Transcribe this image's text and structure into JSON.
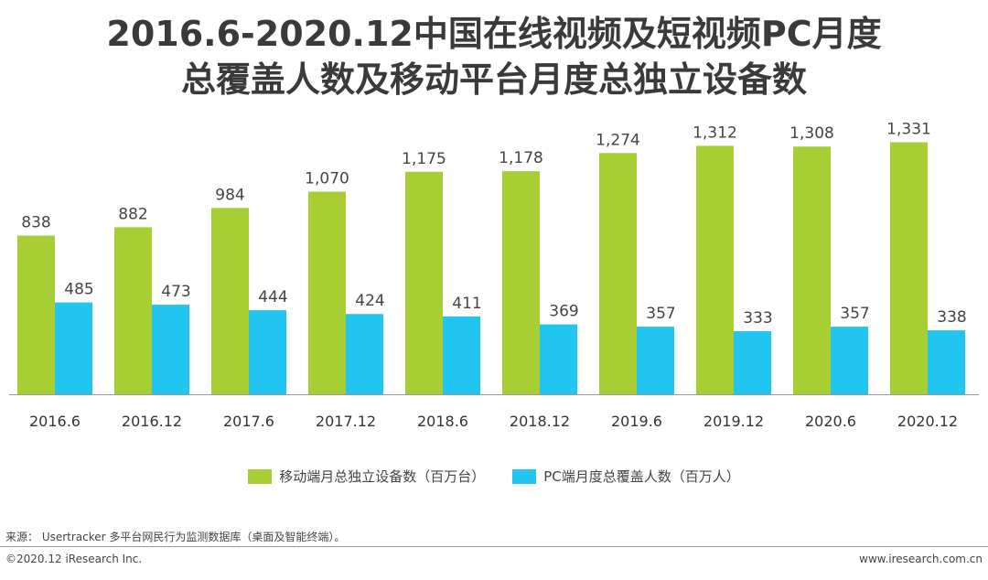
{
  "title_line1": "2016.6-2020.12中国在线视频及短视频PC月度",
  "title_line2": "总覆盖人数及移动平台月度总独立设备数",
  "colors": {
    "mobile": "#a7cf33",
    "pc": "#22c5ef",
    "axis": "#999999"
  },
  "chart_data": {
    "type": "bar",
    "title": "2016.6-2020.12中国在线视频及短视频PC月度总覆盖人数及移动平台月度总独立设备数",
    "categories": [
      "2016.6",
      "2016.12",
      "2017.6",
      "2017.12",
      "2018.6",
      "2018.12",
      "2019.6",
      "2019.12",
      "2020.6",
      "2020.12"
    ],
    "series": [
      {
        "name": "移动端月总独立设备数（百万台）",
        "values": [
          838,
          882,
          984,
          1070,
          1175,
          1178,
          1274,
          1312,
          1308,
          1331
        ],
        "labels": [
          "838",
          "882",
          "984",
          "1,070",
          "1,175",
          "1,178",
          "1,274",
          "1,312",
          "1,308",
          "1,331"
        ]
      },
      {
        "name": "PC端月度总覆盖人数（百万人）",
        "values": [
          485,
          473,
          444,
          424,
          411,
          369,
          357,
          333,
          357,
          338
        ],
        "labels": [
          "485",
          "473",
          "444",
          "424",
          "411",
          "369",
          "357",
          "333",
          "357",
          "338"
        ]
      }
    ],
    "xlabel": "",
    "ylabel": "",
    "ylim": [
      0,
      1400
    ],
    "grid": false,
    "legend": "bottom"
  },
  "legend": {
    "mobile": "移动端月总独立设备数（百万台）",
    "pc": "PC端月度总覆盖人数（百万人）"
  },
  "source": "来源： Usertracker 多平台网民行为监测数据库（桌面及智能终端）。",
  "copyright": "©2020.12 iResearch Inc.",
  "website": "www.iresearch.com.cn"
}
